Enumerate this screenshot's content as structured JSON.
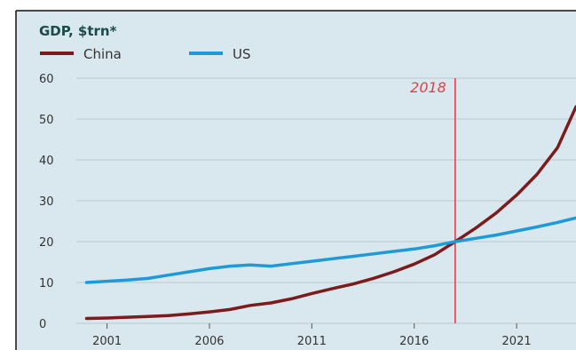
{
  "chart_data": {
    "type": "line",
    "title": "GDP, $trn*",
    "xlabel": "",
    "ylabel": "",
    "xlim": [
      1999.5,
      2023.9
    ],
    "ylim": [
      0,
      60
    ],
    "yticks": [
      0,
      10,
      20,
      30,
      40,
      50,
      60
    ],
    "xticks": [
      2001,
      2006,
      2011,
      2016,
      2021
    ],
    "grid": true,
    "legend": "top-left",
    "series": [
      {
        "name": "China",
        "color": "#7b1b1b",
        "x": [
          2000,
          2001,
          2002,
          2003,
          2004,
          2005,
          2006,
          2007,
          2008,
          2009,
          2010,
          2011,
          2012,
          2013,
          2014,
          2015,
          2016,
          2017,
          2018,
          2019,
          2020,
          2021,
          2022,
          2023,
          2023.9
        ],
        "y": [
          1.2,
          1.3,
          1.5,
          1.7,
          1.9,
          2.3,
          2.8,
          3.4,
          4.4,
          5.0,
          6.0,
          7.3,
          8.5,
          9.6,
          11.0,
          12.6,
          14.5,
          16.8,
          20.0,
          23.3,
          27.0,
          31.4,
          36.5,
          43.0,
          53.0
        ]
      },
      {
        "name": "US",
        "color": "#1f9ad6",
        "x": [
          2000,
          2001,
          2002,
          2003,
          2004,
          2005,
          2006,
          2007,
          2008,
          2009,
          2010,
          2011,
          2012,
          2013,
          2014,
          2015,
          2016,
          2017,
          2018,
          2019,
          2020,
          2021,
          2022,
          2023,
          2023.9
        ],
        "y": [
          10.0,
          10.3,
          10.6,
          11.0,
          11.8,
          12.6,
          13.4,
          14.0,
          14.3,
          14.0,
          14.6,
          15.2,
          15.8,
          16.4,
          17.0,
          17.6,
          18.2,
          19.0,
          20.0,
          20.8,
          21.6,
          22.6,
          23.6,
          24.7,
          25.8
        ]
      }
    ],
    "annotations": [
      {
        "x": 2018,
        "label": "2018",
        "color": "#e0404a"
      }
    ],
    "colors": {
      "background": "#d9e7ee",
      "grid": "#bfc9cf",
      "title": "#1a4a4a",
      "axis_text": "#333333"
    }
  }
}
